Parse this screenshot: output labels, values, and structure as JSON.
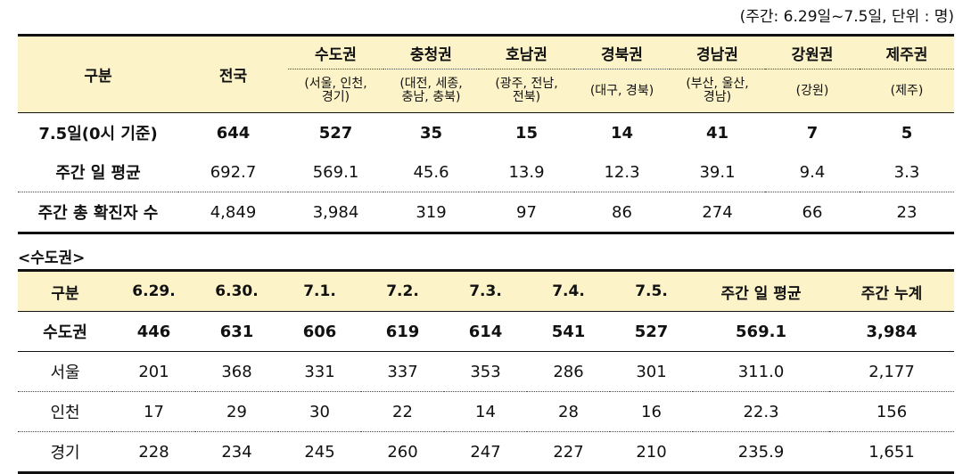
{
  "unit_note": "(주간: 6.29일~7.5일, 단위 : 명)",
  "table1": {
    "header_first": "구분",
    "header_national": "전국",
    "regions": [
      {
        "name": "수도권",
        "sub": "(서울, 인천,\n경기)"
      },
      {
        "name": "충청권",
        "sub": "(대전, 세종,\n충남, 충북)"
      },
      {
        "name": "호남권",
        "sub": "(광주, 전남,\n전북)"
      },
      {
        "name": "경북권",
        "sub": "(대구, 경북)"
      },
      {
        "name": "경남권",
        "sub": "(부산, 울산,\n경남)"
      },
      {
        "name": "강원권",
        "sub": "(강원)"
      },
      {
        "name": "제주권",
        "sub": "(제주)"
      }
    ],
    "rows": [
      {
        "label": "7.5일(0시 기준)",
        "values": [
          "644",
          "527",
          "35",
          "15",
          "14",
          "41",
          "7",
          "5"
        ]
      },
      {
        "label": "주간 일 평균",
        "values": [
          "692.7",
          "569.1",
          "45.6",
          "13.9",
          "12.3",
          "39.1",
          "9.4",
          "3.3"
        ]
      },
      {
        "label": "주간 총 확진자 수",
        "values": [
          "4,849",
          "3,984",
          "319",
          "97",
          "86",
          "274",
          "66",
          "23"
        ]
      }
    ]
  },
  "section_label": "<수도권>",
  "table2": {
    "headers": [
      "구분",
      "6.29.",
      "6.30.",
      "7.1.",
      "7.2.",
      "7.3.",
      "7.4.",
      "7.5.",
      "주간 일 평균",
      "주간 누계"
    ],
    "rows": [
      {
        "label": "수도권",
        "values": [
          "446",
          "631",
          "606",
          "619",
          "614",
          "541",
          "527",
          "569.1",
          "3,984"
        ]
      },
      {
        "label": "서울",
        "values": [
          "201",
          "368",
          "331",
          "337",
          "353",
          "286",
          "301",
          "311.0",
          "2,177"
        ]
      },
      {
        "label": "인천",
        "values": [
          "17",
          "29",
          "30",
          "22",
          "14",
          "28",
          "16",
          "22.3",
          "156"
        ]
      },
      {
        "label": "경기",
        "values": [
          "228",
          "234",
          "245",
          "260",
          "247",
          "227",
          "210",
          "235.9",
          "1,651"
        ]
      }
    ]
  }
}
